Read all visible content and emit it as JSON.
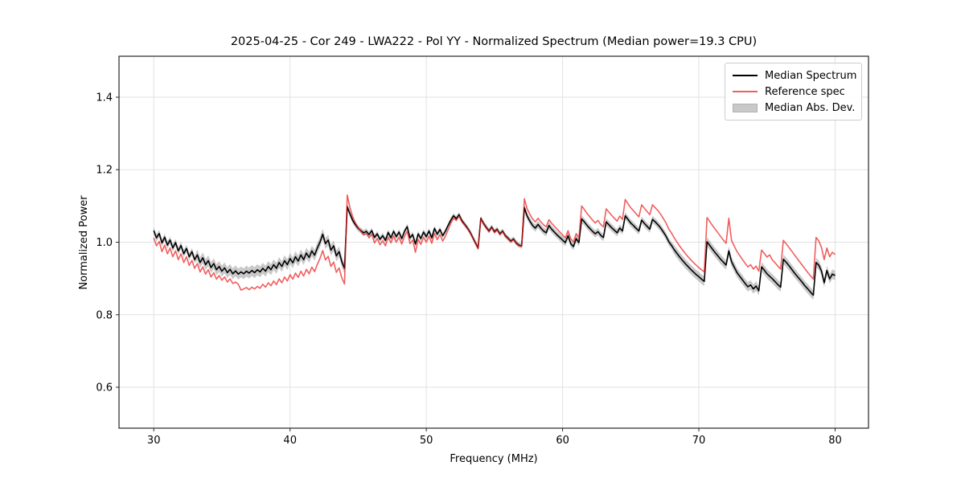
{
  "figure": {
    "title": "2025-04-25 - Cor 249 - LWA222 - Pol YY - Normalized Spectrum (Median power=19.3 CPU)",
    "xlabel": "Frequency (MHz)",
    "ylabel": "Normalized Power"
  },
  "legend": {
    "items": [
      {
        "label": "Median Spectrum",
        "swatch": "line",
        "color": "#000000"
      },
      {
        "label": "Reference spec",
        "swatch": "line",
        "color": "#f15e5e"
      },
      {
        "label": "Median Abs. Dev.",
        "swatch": "patch",
        "color": "#c9c9c9"
      }
    ]
  },
  "chart_data": {
    "type": "line",
    "title": "2025-04-25 - Cor 249 - LWA222 - Pol YY - Normalized Spectrum (Median power=19.3 CPU)",
    "xlabel": "Frequency (MHz)",
    "ylabel": "Normalized Power",
    "xlim": [
      27.45,
      82.45
    ],
    "ylim": [
      0.487,
      1.513
    ],
    "x_ticks": [
      30,
      40,
      50,
      60,
      70,
      80
    ],
    "x_tick_labels": [
      "30",
      "40",
      "50",
      "60",
      "70",
      "80"
    ],
    "y_ticks": [
      0.6,
      0.8,
      1.0,
      1.2,
      1.4
    ],
    "y_tick_labels": [
      "0.6",
      "0.8",
      "1.0",
      "1.2",
      "1.4"
    ],
    "grid": true,
    "grid_color": "#e2e2e2",
    "spine_color": "#262626",
    "legend_position": "upper right",
    "x_start": 30.0,
    "x_step": 0.2,
    "n_points": 251,
    "series": [
      {
        "name": "Median Spectrum",
        "color": "#000000",
        "opacity": 1.0,
        "values": [
          1.032,
          1.012,
          1.024,
          0.998,
          1.014,
          0.992,
          1.006,
          0.984,
          0.999,
          0.976,
          0.991,
          0.968,
          0.983,
          0.96,
          0.974,
          0.952,
          0.965,
          0.944,
          0.957,
          0.938,
          0.949,
          0.93,
          0.941,
          0.924,
          0.933,
          0.92,
          0.929,
          0.916,
          0.925,
          0.913,
          0.921,
          0.912,
          0.918,
          0.913,
          0.92,
          0.915,
          0.922,
          0.916,
          0.924,
          0.918,
          0.928,
          0.92,
          0.933,
          0.924,
          0.938,
          0.928,
          0.944,
          0.933,
          0.949,
          0.938,
          0.955,
          0.943,
          0.96,
          0.948,
          0.965,
          0.952,
          0.97,
          0.958,
          0.976,
          0.964,
          0.984,
          1.0,
          1.022,
          0.996,
          1.006,
          0.978,
          0.99,
          0.962,
          0.974,
          0.946,
          0.928,
          1.098,
          1.078,
          1.06,
          1.048,
          1.038,
          1.032,
          1.026,
          1.03,
          1.021,
          1.032,
          1.013,
          1.023,
          1.008,
          1.018,
          1.005,
          1.027,
          1.012,
          1.03,
          1.015,
          1.028,
          1.01,
          1.03,
          1.043,
          1.012,
          1.021,
          0.995,
          1.023,
          1.01,
          1.028,
          1.015,
          1.031,
          1.012,
          1.038,
          1.022,
          1.035,
          1.018,
          1.03,
          1.046,
          1.061,
          1.073,
          1.065,
          1.076,
          1.06,
          1.05,
          1.04,
          1.029,
          1.014,
          0.999,
          0.984,
          1.066,
          1.052,
          1.041,
          1.031,
          1.042,
          1.029,
          1.036,
          1.023,
          1.031,
          1.018,
          1.011,
          1.003,
          1.009,
          0.998,
          0.992,
          0.99,
          1.095,
          1.072,
          1.058,
          1.046,
          1.039,
          1.049,
          1.039,
          1.031,
          1.026,
          1.046,
          1.036,
          1.028,
          1.02,
          1.013,
          1.006,
          0.999,
          1.018,
          0.996,
          0.988,
          1.01,
          0.999,
          1.064,
          1.056,
          1.046,
          1.038,
          1.03,
          1.023,
          1.029,
          1.019,
          1.013,
          1.056,
          1.048,
          1.04,
          1.033,
          1.026,
          1.039,
          1.031,
          1.073,
          1.063,
          1.053,
          1.046,
          1.038,
          1.031,
          1.061,
          1.052,
          1.044,
          1.036,
          1.063,
          1.056,
          1.048,
          1.039,
          1.028,
          1.016,
          1.001,
          0.991,
          0.979,
          0.969,
          0.959,
          0.95,
          0.941,
          0.933,
          0.925,
          0.918,
          0.911,
          0.905,
          0.898,
          0.892,
          1.001,
          0.991,
          0.981,
          0.971,
          0.962,
          0.953,
          0.945,
          0.937,
          0.976,
          0.946,
          0.931,
          0.916,
          0.906,
          0.896,
          0.886,
          0.877,
          0.882,
          0.871,
          0.879,
          0.866,
          0.932,
          0.923,
          0.913,
          0.906,
          0.899,
          0.891,
          0.883,
          0.876,
          0.953,
          0.945,
          0.936,
          0.926,
          0.916,
          0.907,
          0.898,
          0.889,
          0.879,
          0.871,
          0.862,
          0.854,
          0.944,
          0.937,
          0.921,
          0.888,
          0.922,
          0.899,
          0.912,
          0.908
        ]
      },
      {
        "name": "Reference spec",
        "color": "#eb1919",
        "opacity": 0.7,
        "values": [
          1.012,
          0.99,
          1.002,
          0.974,
          0.992,
          0.968,
          0.984,
          0.96,
          0.976,
          0.952,
          0.968,
          0.944,
          0.96,
          0.936,
          0.95,
          0.928,
          0.941,
          0.918,
          0.932,
          0.912,
          0.924,
          0.904,
          0.916,
          0.898,
          0.908,
          0.895,
          0.904,
          0.89,
          0.899,
          0.886,
          0.89,
          0.884,
          0.868,
          0.871,
          0.875,
          0.869,
          0.876,
          0.871,
          0.878,
          0.873,
          0.884,
          0.876,
          0.888,
          0.88,
          0.893,
          0.883,
          0.899,
          0.888,
          0.904,
          0.893,
          0.91,
          0.898,
          0.915,
          0.903,
          0.92,
          0.907,
          0.925,
          0.913,
          0.931,
          0.919,
          0.939,
          0.955,
          0.977,
          0.951,
          0.961,
          0.933,
          0.945,
          0.917,
          0.929,
          0.901,
          0.885,
          1.13,
          1.095,
          1.07,
          1.053,
          1.04,
          1.03,
          1.02,
          1.024,
          1.012,
          1.022,
          0.998,
          1.01,
          0.993,
          1.004,
          0.99,
          1.014,
          0.998,
          1.017,
          1.0,
          1.014,
          0.995,
          1.016,
          1.03,
          0.996,
          1.006,
          0.972,
          1.008,
          0.994,
          1.014,
          1.0,
          1.017,
          0.997,
          1.024,
          1.007,
          1.021,
          1.003,
          1.016,
          1.034,
          1.052,
          1.066,
          1.06,
          1.072,
          1.057,
          1.048,
          1.038,
          1.027,
          1.012,
          0.997,
          0.982,
          1.064,
          1.05,
          1.039,
          1.029,
          1.04,
          1.027,
          1.034,
          1.021,
          1.029,
          1.016,
          1.009,
          1.001,
          1.007,
          0.996,
          0.99,
          0.988,
          1.12,
          1.092,
          1.077,
          1.064,
          1.056,
          1.066,
          1.056,
          1.048,
          1.042,
          1.062,
          1.052,
          1.044,
          1.036,
          1.028,
          1.02,
          1.012,
          1.032,
          1.01,
          1.001,
          1.024,
          1.012,
          1.1,
          1.09,
          1.079,
          1.07,
          1.061,
          1.053,
          1.06,
          1.049,
          1.042,
          1.092,
          1.083,
          1.074,
          1.066,
          1.058,
          1.072,
          1.063,
          1.118,
          1.106,
          1.095,
          1.087,
          1.078,
          1.07,
          1.103,
          1.094,
          1.085,
          1.076,
          1.103,
          1.095,
          1.087,
          1.077,
          1.065,
          1.052,
          1.036,
          1.025,
          1.012,
          1.0,
          0.989,
          0.979,
          0.969,
          0.96,
          0.952,
          0.944,
          0.937,
          0.93,
          0.924,
          0.918,
          1.068,
          1.057,
          1.046,
          1.036,
          1.026,
          1.016,
          1.006,
          0.997,
          1.066,
          1.005,
          0.989,
          0.974,
          0.963,
          0.952,
          0.942,
          0.932,
          0.938,
          0.926,
          0.934,
          0.92,
          0.978,
          0.969,
          0.959,
          0.965,
          0.951,
          0.943,
          0.934,
          0.926,
          1.005,
          0.996,
          0.986,
          0.976,
          0.966,
          0.956,
          0.946,
          0.936,
          0.926,
          0.916,
          0.907,
          0.898,
          1.013,
          1.004,
          0.986,
          0.952,
          0.984,
          0.96,
          0.972,
          0.966
        ]
      }
    ],
    "band": {
      "name": "Median Abs. Dev.",
      "around": "Median Spectrum",
      "color": "#787878",
      "opacity": 0.4,
      "halfwidth_segments": [
        {
          "from": 30.0,
          "to": 33.0,
          "hw": 0.01
        },
        {
          "from": 33.0,
          "to": 44.0,
          "hw": 0.015
        },
        {
          "from": 44.0,
          "to": 51.0,
          "hw": 0.008
        },
        {
          "from": 51.0,
          "to": 57.0,
          "hw": 0.007
        },
        {
          "from": 57.0,
          "to": 68.0,
          "hw": 0.01
        },
        {
          "from": 68.0,
          "to": 80.3,
          "hw": 0.013
        }
      ]
    }
  }
}
